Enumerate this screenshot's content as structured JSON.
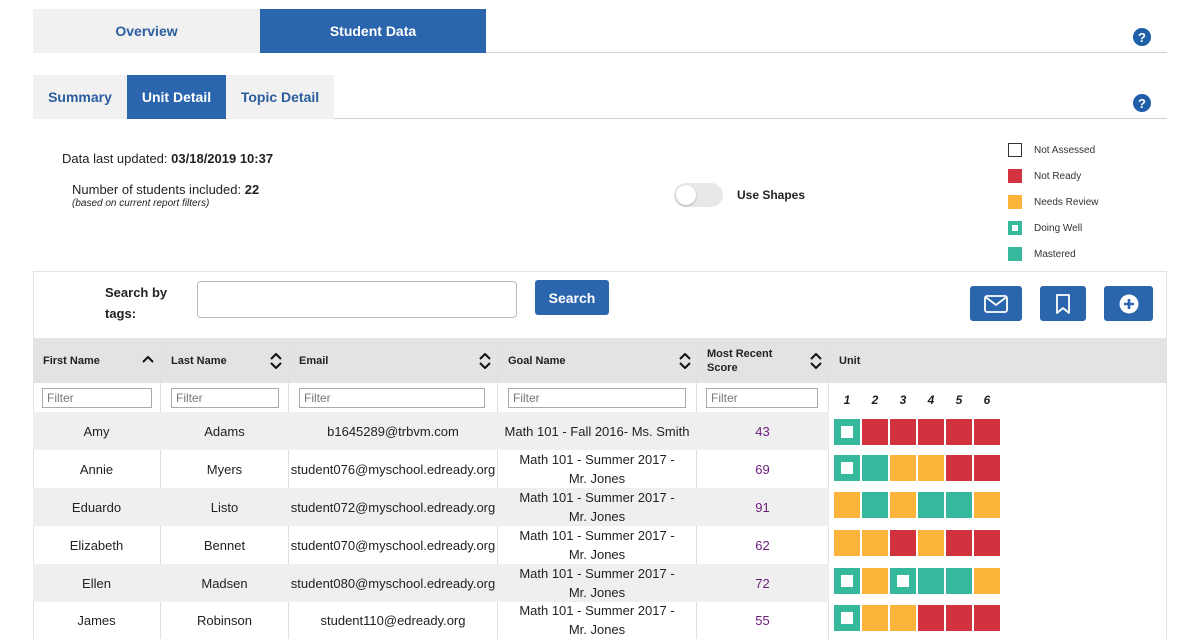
{
  "top_tabs": [
    {
      "label": "Overview"
    },
    {
      "label": "Student Data"
    }
  ],
  "sub_tabs": [
    {
      "label": "Summary"
    },
    {
      "label": "Unit Detail"
    },
    {
      "label": "Topic Detail"
    }
  ],
  "help_glyph": "?",
  "info": {
    "updated_label": "Data last updated:",
    "updated_value": "03/18/2019 10:37",
    "students_label": "Number of students included:",
    "students_value": "22",
    "students_note": "(based on current report filters)"
  },
  "toggle": {
    "label": "Use Shapes",
    "on": false
  },
  "colors": {
    "not_ready": "#d2323e",
    "needs_review": "#fbb33a",
    "doing_well": "#35b89c",
    "mastered": "#35b89c",
    "accent": "#2a65ad"
  },
  "legend": [
    {
      "label": "Not Assessed",
      "status": "not_assessed"
    },
    {
      "label": "Not Ready",
      "status": "not_ready"
    },
    {
      "label": "Needs Review",
      "status": "needs_review"
    },
    {
      "label": "Doing Well",
      "status": "doing_well"
    },
    {
      "label": "Mastered",
      "status": "mastered"
    }
  ],
  "search": {
    "label": "Search by tags:",
    "placeholder": "",
    "button": "Search"
  },
  "actions": [
    {
      "icon": "envelope-icon"
    },
    {
      "icon": "bookmark-icon"
    },
    {
      "icon": "plus-circle-icon"
    }
  ],
  "table": {
    "columns": [
      {
        "label": "First Name",
        "sort": "asc"
      },
      {
        "label": "Last Name",
        "sort": "both"
      },
      {
        "label": "Email",
        "sort": "both"
      },
      {
        "label": "Goal Name",
        "sort": "both"
      },
      {
        "label": "Most Recent Score",
        "sort": "both"
      },
      {
        "label": "Unit",
        "sort": "none"
      }
    ],
    "filter_placeholder": "Filter",
    "units": [
      "1",
      "2",
      "3",
      "4",
      "5",
      "6"
    ],
    "rows": [
      {
        "first": "Amy",
        "last": "Adams",
        "email": "b1645289@trbvm.com",
        "goal": "Math 101 - Fall 2016- Ms. Smith",
        "score": "43",
        "units": [
          "doing_well",
          "not_ready",
          "not_ready",
          "not_ready",
          "not_ready",
          "not_ready"
        ]
      },
      {
        "first": "Annie",
        "last": "Myers",
        "email": "student076@myschool.edready.org",
        "goal": "Math 101 - Summer 2017 - Mr. Jones",
        "score": "69",
        "units": [
          "doing_well",
          "mastered",
          "needs_review",
          "needs_review",
          "not_ready",
          "not_ready"
        ]
      },
      {
        "first": "Eduardo",
        "last": "Listo",
        "email": "student072@myschool.edready.org",
        "goal": "Math 101 - Summer 2017 - Mr. Jones",
        "score": "91",
        "units": [
          "needs_review",
          "mastered",
          "needs_review",
          "mastered",
          "mastered",
          "needs_review"
        ]
      },
      {
        "first": "Elizabeth",
        "last": "Bennet",
        "email": "student070@myschool.edready.org",
        "goal": "Math 101 - Summer 2017 - Mr. Jones",
        "score": "62",
        "units": [
          "needs_review",
          "needs_review",
          "not_ready",
          "needs_review",
          "not_ready",
          "not_ready"
        ]
      },
      {
        "first": "Ellen",
        "last": "Madsen",
        "email": "student080@myschool.edready.org",
        "goal": "Math 101 - Summer 2017 - Mr. Jones",
        "score": "72",
        "units": [
          "doing_well",
          "needs_review",
          "doing_well",
          "mastered",
          "mastered",
          "needs_review"
        ]
      },
      {
        "first": "James",
        "last": "Robinson",
        "email": "student110@edready.org",
        "goal": "Math 101 - Summer 2017 - Mr. Jones",
        "score": "55",
        "units": [
          "doing_well",
          "needs_review",
          "needs_review",
          "not_ready",
          "not_ready",
          "not_ready"
        ]
      }
    ]
  }
}
